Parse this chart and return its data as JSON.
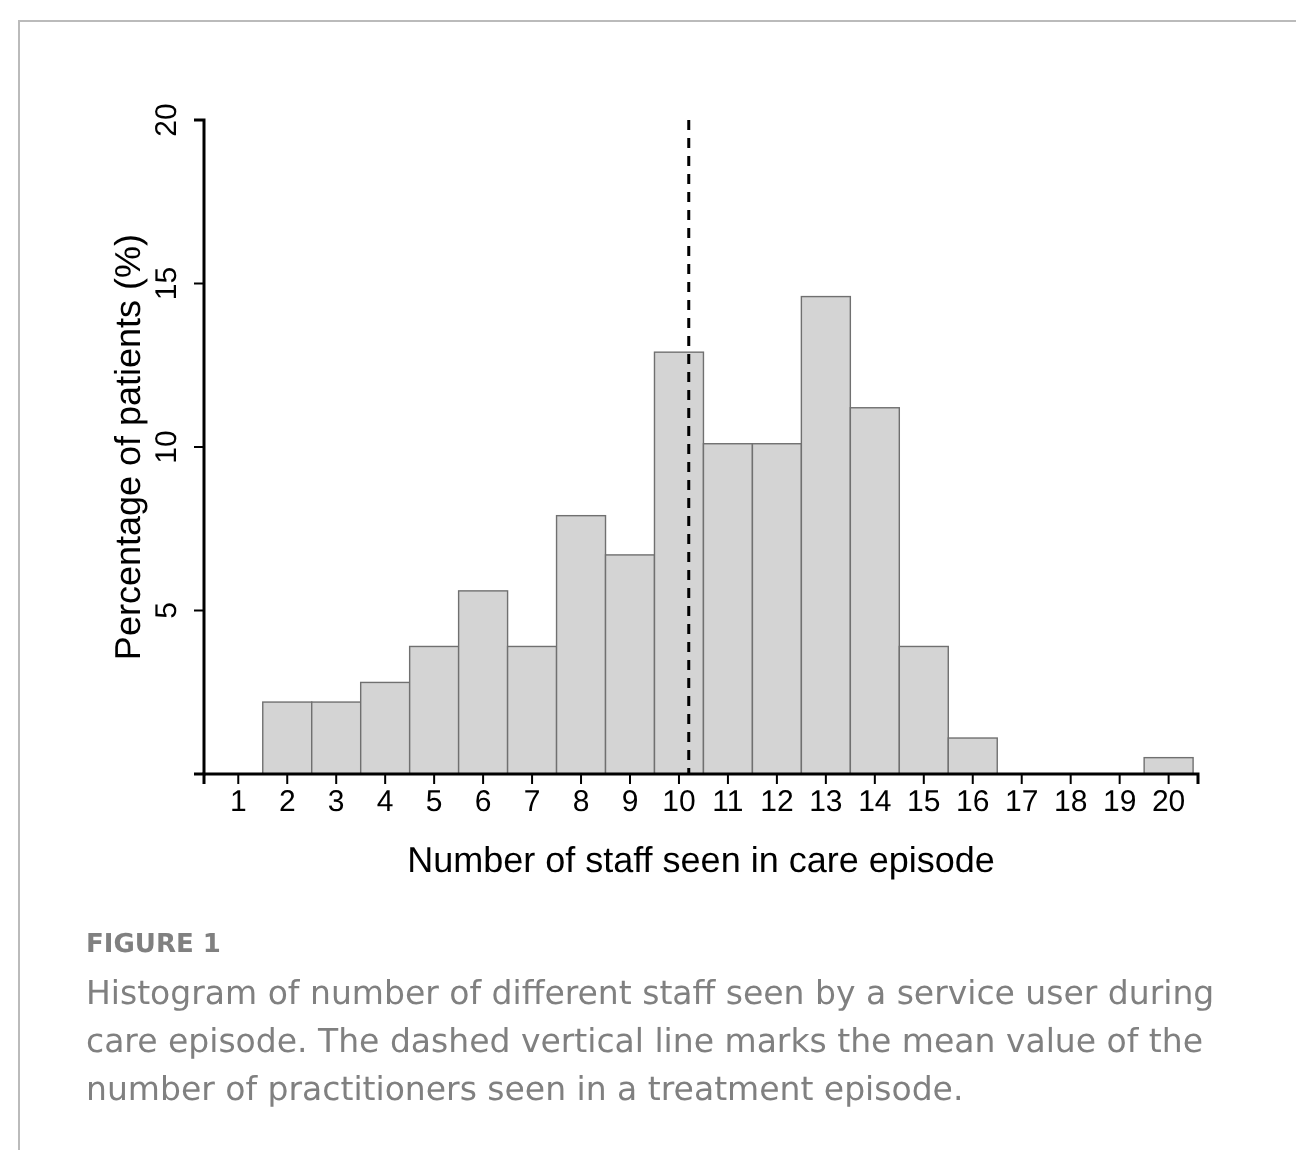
{
  "chart_data": {
    "type": "histogram",
    "xlabel": "Number of staff seen in care episode",
    "ylabel": "Percentage of patients (%)",
    "bins": [
      0.5,
      1.5,
      2.5,
      3.5,
      4.5,
      5.5,
      6.5,
      7.5,
      8.5,
      9.5,
      10.5,
      11.5,
      12.5,
      13.5,
      14.5,
      15.5,
      16.5,
      17.5,
      18.5,
      19.5,
      20.5
    ],
    "values": [
      0,
      2.2,
      2.2,
      2.8,
      3.9,
      5.6,
      3.9,
      7.9,
      6.7,
      12.9,
      10.1,
      10.1,
      14.6,
      11.2,
      3.9,
      1.1,
      0,
      0,
      0,
      0.5
    ],
    "color": "#d4d4d4",
    "xlim": [
      0.3,
      20.6
    ],
    "xticks": [
      1,
      2,
      3,
      4,
      5,
      6,
      7,
      8,
      9,
      10,
      11,
      12,
      13,
      14,
      15,
      16,
      17,
      18,
      19,
      20
    ],
    "ylim": [
      0,
      20
    ],
    "yticks": [
      {
        "value": 0,
        "label": null
      },
      5,
      10,
      15,
      20
    ],
    "ref_lines": [
      {
        "axis": "x",
        "value": 10.2,
        "line_style": "dashed",
        "color": "#000000"
      }
    ],
    "annotations": [
      "FIGURE 1",
      "Histogram of number of different staff seen by a service user during care episode. The dashed vertical line marks the mean value of the number of practitioners seen in a treatment episode."
    ]
  }
}
